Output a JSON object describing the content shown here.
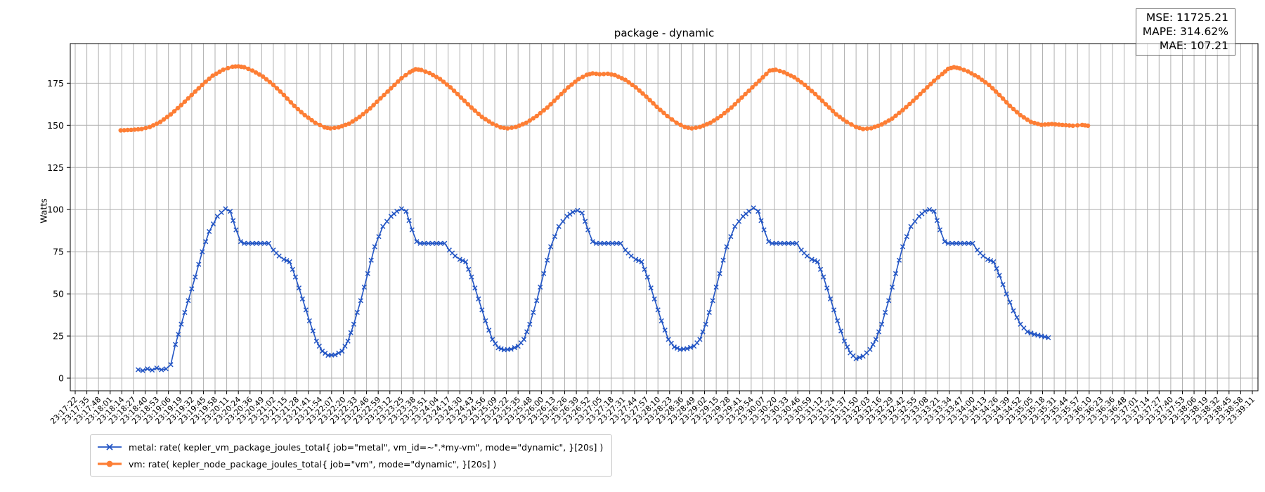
{
  "figure": {
    "title": "package - dynamic",
    "ylabel": "Watts"
  },
  "stats": {
    "mse": "MSE: 11725.21",
    "mape": "MAPE: 314.62%",
    "mae": "MAE: 107.21"
  },
  "legend": {
    "items": [
      {
        "label": "metal: rate( kepler_vm_package_joules_total{ job=\"metal\", vm_id=~\".*my-vm\", mode=\"dynamic\", }[20s] )",
        "color": "#2355c4",
        "marker": "x"
      },
      {
        "label": "vm: rate( kepler_node_package_joules_total{ job=\"vm\", mode=\"dynamic\", }[20s] )",
        "color": "#fd7e35",
        "marker": "o"
      }
    ]
  },
  "chart_data": {
    "type": "line",
    "title": "package - dynamic",
    "xlabel": "",
    "ylabel": "Watts",
    "ylim": [
      -7.5,
      198.5
    ],
    "grid": true,
    "grid_color": "#b0b0b0",
    "legend_position": "lower-left-outside",
    "yticks": [
      0,
      25,
      50,
      75,
      100,
      125,
      150,
      175
    ],
    "xticklabels": [
      "23:17:22",
      "23:17:35",
      "23:17:48",
      "23:18:01",
      "23:18:14",
      "23:18:27",
      "23:18:40",
      "23:18:53",
      "23:19:06",
      "23:19:19",
      "23:19:32",
      "23:19:45",
      "23:19:58",
      "23:20:11",
      "23:20:24",
      "23:20:36",
      "23:20:49",
      "23:21:02",
      "23:21:15",
      "23:21:28",
      "23:21:41",
      "23:21:54",
      "23:22:07",
      "23:22:20",
      "23:22:33",
      "23:22:46",
      "23:22:59",
      "23:23:12",
      "23:23:25",
      "23:23:38",
      "23:23:51",
      "23:24:04",
      "23:24:17",
      "23:24:30",
      "23:24:43",
      "23:24:56",
      "23:25:09",
      "23:25:22",
      "23:25:35",
      "23:25:48",
      "23:26:00",
      "23:26:13",
      "23:26:26",
      "23:26:39",
      "23:26:52",
      "23:27:05",
      "23:27:18",
      "23:27:31",
      "23:27:44",
      "23:27:57",
      "23:28:10",
      "23:28:23",
      "23:28:36",
      "23:28:49",
      "23:29:02",
      "23:29:15",
      "23:29:28",
      "23:29:41",
      "23:29:54",
      "23:30:07",
      "23:30:20",
      "23:30:33",
      "23:30:46",
      "23:30:59",
      "23:31:12",
      "23:31:24",
      "23:31:37",
      "23:31:50",
      "23:32:03",
      "23:32:16",
      "23:32:29",
      "23:32:42",
      "23:32:55",
      "23:33:08",
      "23:33:21",
      "23:33:34",
      "23:33:47",
      "23:34:00",
      "23:34:13",
      "23:34:26",
      "23:34:39",
      "23:34:52",
      "23:35:05",
      "23:35:18",
      "23:35:31",
      "23:35:44",
      "23:35:57",
      "23:36:10",
      "23:36:23",
      "23:36:36",
      "23:36:48",
      "23:37:01",
      "23:37:14",
      "23:37:27",
      "23:37:40",
      "23:37:53",
      "23:38:06",
      "23:38:19",
      "23:38:32",
      "23:38:45",
      "23:38:58",
      "23:39:11"
    ],
    "marker_step": 0.3333,
    "series": [
      {
        "name": "metal: rate( kepler_vm_package_joules_total{ job=\"metal\", vm_id=~\".*my-vm\", mode=\"dynamic\", }[20s] )",
        "color": "#2355c4",
        "marker": "x",
        "line_width": 1.6,
        "marker_size": 3.1,
        "points": [
          [
            5.4,
            5
          ],
          [
            5.8,
            4.5
          ],
          [
            6.2,
            5.5
          ],
          [
            6.6,
            4.8
          ],
          [
            7.0,
            6.0
          ],
          [
            7.4,
            5.0
          ],
          [
            7.8,
            5.5
          ],
          [
            8.2,
            8
          ],
          [
            8.6,
            20
          ],
          [
            9.1,
            32
          ],
          [
            9.7,
            46
          ],
          [
            10.3,
            60
          ],
          [
            10.9,
            75
          ],
          [
            11.5,
            87
          ],
          [
            12.2,
            96
          ],
          [
            12.9,
            100.5
          ],
          [
            13.3,
            99
          ],
          [
            13.8,
            88
          ],
          [
            14.2,
            81
          ],
          [
            14.5,
            80
          ],
          [
            16.6,
            80
          ],
          [
            17.0,
            76
          ],
          [
            17.5,
            72.5
          ],
          [
            17.9,
            70.5
          ],
          [
            18.4,
            69
          ],
          [
            18.9,
            60
          ],
          [
            19.5,
            47
          ],
          [
            20.1,
            34
          ],
          [
            20.7,
            22
          ],
          [
            21.2,
            16
          ],
          [
            21.7,
            13.5
          ],
          [
            22.3,
            13.8
          ],
          [
            22.9,
            16
          ],
          [
            23.4,
            22
          ],
          [
            23.9,
            32
          ],
          [
            24.5,
            46
          ],
          [
            25.1,
            62
          ],
          [
            25.7,
            78
          ],
          [
            26.4,
            90
          ],
          [
            27.1,
            96
          ],
          [
            27.6,
            99
          ],
          [
            28.0,
            100.5
          ],
          [
            28.4,
            99
          ],
          [
            28.9,
            88
          ],
          [
            29.3,
            81
          ],
          [
            29.6,
            80
          ],
          [
            31.7,
            80
          ],
          [
            32.1,
            76
          ],
          [
            32.6,
            72.5
          ],
          [
            33.0,
            70.5
          ],
          [
            33.5,
            69
          ],
          [
            34.0,
            60
          ],
          [
            34.6,
            47
          ],
          [
            35.2,
            34
          ],
          [
            35.8,
            23
          ],
          [
            36.3,
            18
          ],
          [
            36.8,
            16.8
          ],
          [
            37.4,
            17.2
          ],
          [
            38.0,
            19
          ],
          [
            38.5,
            23
          ],
          [
            39.0,
            32
          ],
          [
            39.6,
            46
          ],
          [
            40.2,
            62
          ],
          [
            40.8,
            78
          ],
          [
            41.5,
            90
          ],
          [
            42.2,
            96
          ],
          [
            42.7,
            98.5
          ],
          [
            43.1,
            99.5
          ],
          [
            43.5,
            98
          ],
          [
            44.0,
            88
          ],
          [
            44.4,
            81
          ],
          [
            44.7,
            80
          ],
          [
            46.8,
            80
          ],
          [
            47.2,
            76
          ],
          [
            47.7,
            72.5
          ],
          [
            48.1,
            70.5
          ],
          [
            48.6,
            69
          ],
          [
            49.1,
            60
          ],
          [
            49.7,
            47
          ],
          [
            50.3,
            34
          ],
          [
            50.9,
            23
          ],
          [
            51.4,
            18.5
          ],
          [
            51.9,
            17
          ],
          [
            52.5,
            17.5
          ],
          [
            53.1,
            19
          ],
          [
            53.6,
            23
          ],
          [
            54.1,
            32
          ],
          [
            54.7,
            46
          ],
          [
            55.3,
            62
          ],
          [
            55.9,
            78
          ],
          [
            56.6,
            90
          ],
          [
            57.3,
            96
          ],
          [
            57.8,
            99
          ],
          [
            58.2,
            101
          ],
          [
            58.6,
            99
          ],
          [
            59.1,
            88
          ],
          [
            59.5,
            81
          ],
          [
            59.8,
            80
          ],
          [
            61.9,
            80
          ],
          [
            62.3,
            76
          ],
          [
            62.8,
            72.5
          ],
          [
            63.2,
            70.5
          ],
          [
            63.7,
            69
          ],
          [
            64.2,
            60
          ],
          [
            64.8,
            47
          ],
          [
            65.4,
            34
          ],
          [
            66.0,
            22
          ],
          [
            66.5,
            15
          ],
          [
            67.0,
            11.5
          ],
          [
            67.6,
            13
          ],
          [
            68.2,
            17
          ],
          [
            68.7,
            23
          ],
          [
            69.2,
            32
          ],
          [
            69.8,
            46
          ],
          [
            70.4,
            62
          ],
          [
            71.0,
            78
          ],
          [
            71.7,
            90
          ],
          [
            72.4,
            96
          ],
          [
            72.9,
            99
          ],
          [
            73.3,
            100
          ],
          [
            73.7,
            99
          ],
          [
            74.2,
            88
          ],
          [
            74.6,
            81
          ],
          [
            74.9,
            80
          ],
          [
            77.0,
            80
          ],
          [
            77.4,
            76
          ],
          [
            77.9,
            72.5
          ],
          [
            78.3,
            70.5
          ],
          [
            78.8,
            69
          ],
          [
            79.3,
            61
          ],
          [
            79.9,
            50
          ],
          [
            80.5,
            40
          ],
          [
            81.1,
            32
          ],
          [
            81.7,
            27.5
          ],
          [
            82.3,
            26
          ],
          [
            82.9,
            25
          ],
          [
            83.5,
            24
          ]
        ]
      },
      {
        "name": "vm: rate( kepler_node_package_joules_total{ job=\"vm\", mode=\"dynamic\", }[20s] )",
        "color": "#fd7e35",
        "marker": "o",
        "line_width": 3.4,
        "marker_size": 3.2,
        "points": [
          [
            3.9,
            147
          ],
          [
            4.8,
            147.3
          ],
          [
            5.7,
            147.8
          ],
          [
            6.4,
            149
          ],
          [
            7.3,
            152
          ],
          [
            8.2,
            156.5
          ],
          [
            9.1,
            162
          ],
          [
            10.0,
            168
          ],
          [
            10.9,
            174
          ],
          [
            11.8,
            179.5
          ],
          [
            12.7,
            183
          ],
          [
            13.5,
            184.8
          ],
          [
            14.0,
            185
          ],
          [
            14.5,
            184.5
          ],
          [
            15.2,
            182.5
          ],
          [
            16.1,
            179
          ],
          [
            17.0,
            174
          ],
          [
            17.9,
            168
          ],
          [
            18.8,
            161.5
          ],
          [
            19.7,
            156
          ],
          [
            20.6,
            151.5
          ],
          [
            21.4,
            148.8
          ],
          [
            21.9,
            148.2
          ],
          [
            22.6,
            148.8
          ],
          [
            23.5,
            151
          ],
          [
            24.4,
            155
          ],
          [
            25.3,
            160
          ],
          [
            26.2,
            166
          ],
          [
            27.1,
            172
          ],
          [
            28.0,
            178
          ],
          [
            28.7,
            181.5
          ],
          [
            29.2,
            183.3
          ],
          [
            29.7,
            182.8
          ],
          [
            30.4,
            181
          ],
          [
            31.3,
            177.5
          ],
          [
            32.2,
            172.5
          ],
          [
            33.1,
            166.5
          ],
          [
            34.0,
            160.5
          ],
          [
            34.9,
            155
          ],
          [
            35.8,
            151
          ],
          [
            36.5,
            148.8
          ],
          [
            37.1,
            148.2
          ],
          [
            37.8,
            149
          ],
          [
            38.7,
            151.5
          ],
          [
            39.6,
            155.5
          ],
          [
            40.5,
            160.5
          ],
          [
            41.4,
            166.5
          ],
          [
            42.3,
            172.5
          ],
          [
            43.2,
            177.5
          ],
          [
            43.9,
            180
          ],
          [
            44.4,
            180.8
          ],
          [
            45.0,
            180.3
          ],
          [
            45.7,
            180.6
          ],
          [
            46.3,
            179.8
          ],
          [
            47.2,
            177
          ],
          [
            48.1,
            172.5
          ],
          [
            49.0,
            167
          ],
          [
            49.9,
            161
          ],
          [
            50.8,
            155.5
          ],
          [
            51.6,
            151.5
          ],
          [
            52.3,
            149
          ],
          [
            52.9,
            148.2
          ],
          [
            53.6,
            149
          ],
          [
            54.5,
            151.5
          ],
          [
            55.4,
            155.5
          ],
          [
            56.3,
            160.5
          ],
          [
            57.2,
            166.5
          ],
          [
            58.1,
            172.5
          ],
          [
            59.0,
            178.5
          ],
          [
            59.6,
            182.5
          ],
          [
            60.1,
            183
          ],
          [
            60.8,
            181.5
          ],
          [
            61.7,
            178.5
          ],
          [
            62.6,
            174
          ],
          [
            63.5,
            168.5
          ],
          [
            64.4,
            162.5
          ],
          [
            65.3,
            156.5
          ],
          [
            66.2,
            152
          ],
          [
            67.0,
            149
          ],
          [
            67.6,
            147.8
          ],
          [
            68.3,
            148.3
          ],
          [
            69.2,
            150.5
          ],
          [
            70.1,
            154
          ],
          [
            71.0,
            159
          ],
          [
            71.9,
            164.5
          ],
          [
            72.8,
            170.5
          ],
          [
            73.7,
            176.5
          ],
          [
            74.4,
            180.5
          ],
          [
            74.9,
            183.5
          ],
          [
            75.4,
            184.5
          ],
          [
            75.9,
            183.8
          ],
          [
            76.6,
            182
          ],
          [
            77.5,
            178.5
          ],
          [
            78.4,
            174
          ],
          [
            79.3,
            168
          ],
          [
            80.2,
            161.5
          ],
          [
            81.1,
            156
          ],
          [
            82.0,
            152
          ],
          [
            82.9,
            150.3
          ],
          [
            83.8,
            150.8
          ],
          [
            84.7,
            150.2
          ],
          [
            85.6,
            149.8
          ],
          [
            86.4,
            150.2
          ],
          [
            86.9,
            149.8
          ]
        ]
      }
    ]
  }
}
